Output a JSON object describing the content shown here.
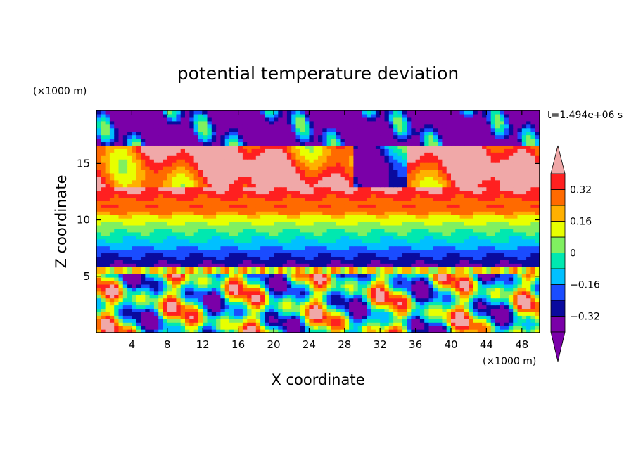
{
  "chart_data": {
    "type": "heatmap",
    "title": "potential temperature deviation",
    "xlabel": "X coordinate",
    "ylabel": "Z coordinate",
    "x_unit": "(×1000 m)",
    "y_unit": "(×1000 m)",
    "time_label": "t=1.494e+06 s",
    "xlim": [
      0,
      50
    ],
    "ylim": [
      0,
      19.7
    ],
    "x_ticks": [
      4,
      8,
      12,
      16,
      20,
      24,
      28,
      32,
      36,
      40,
      44,
      48
    ],
    "y_ticks": [
      5,
      10,
      15
    ],
    "colorbar": {
      "levels": [
        -0.4,
        -0.32,
        -0.24,
        -0.16,
        -0.08,
        0,
        0.08,
        0.16,
        0.24,
        0.32,
        0.4
      ],
      "colors": [
        "#7a00a8",
        "#0a0a9e",
        "#1a4cff",
        "#00c0ff",
        "#00e8b0",
        "#80f060",
        "#e8ff00",
        "#ffb000",
        "#ff6a00",
        "#ff2020",
        "#f0a8a8"
      ],
      "below_color": "#7a00a8",
      "above_color": "#f0a8a8",
      "labels": [
        {
          "value": 0.32,
          "text": "0.32"
        },
        {
          "value": 0.16,
          "text": "0.16"
        },
        {
          "value": 0,
          "text": "0"
        },
        {
          "value": -0.16,
          "text": "−0.16"
        },
        {
          "value": -0.32,
          "text": "−0.32"
        }
      ]
    }
  }
}
